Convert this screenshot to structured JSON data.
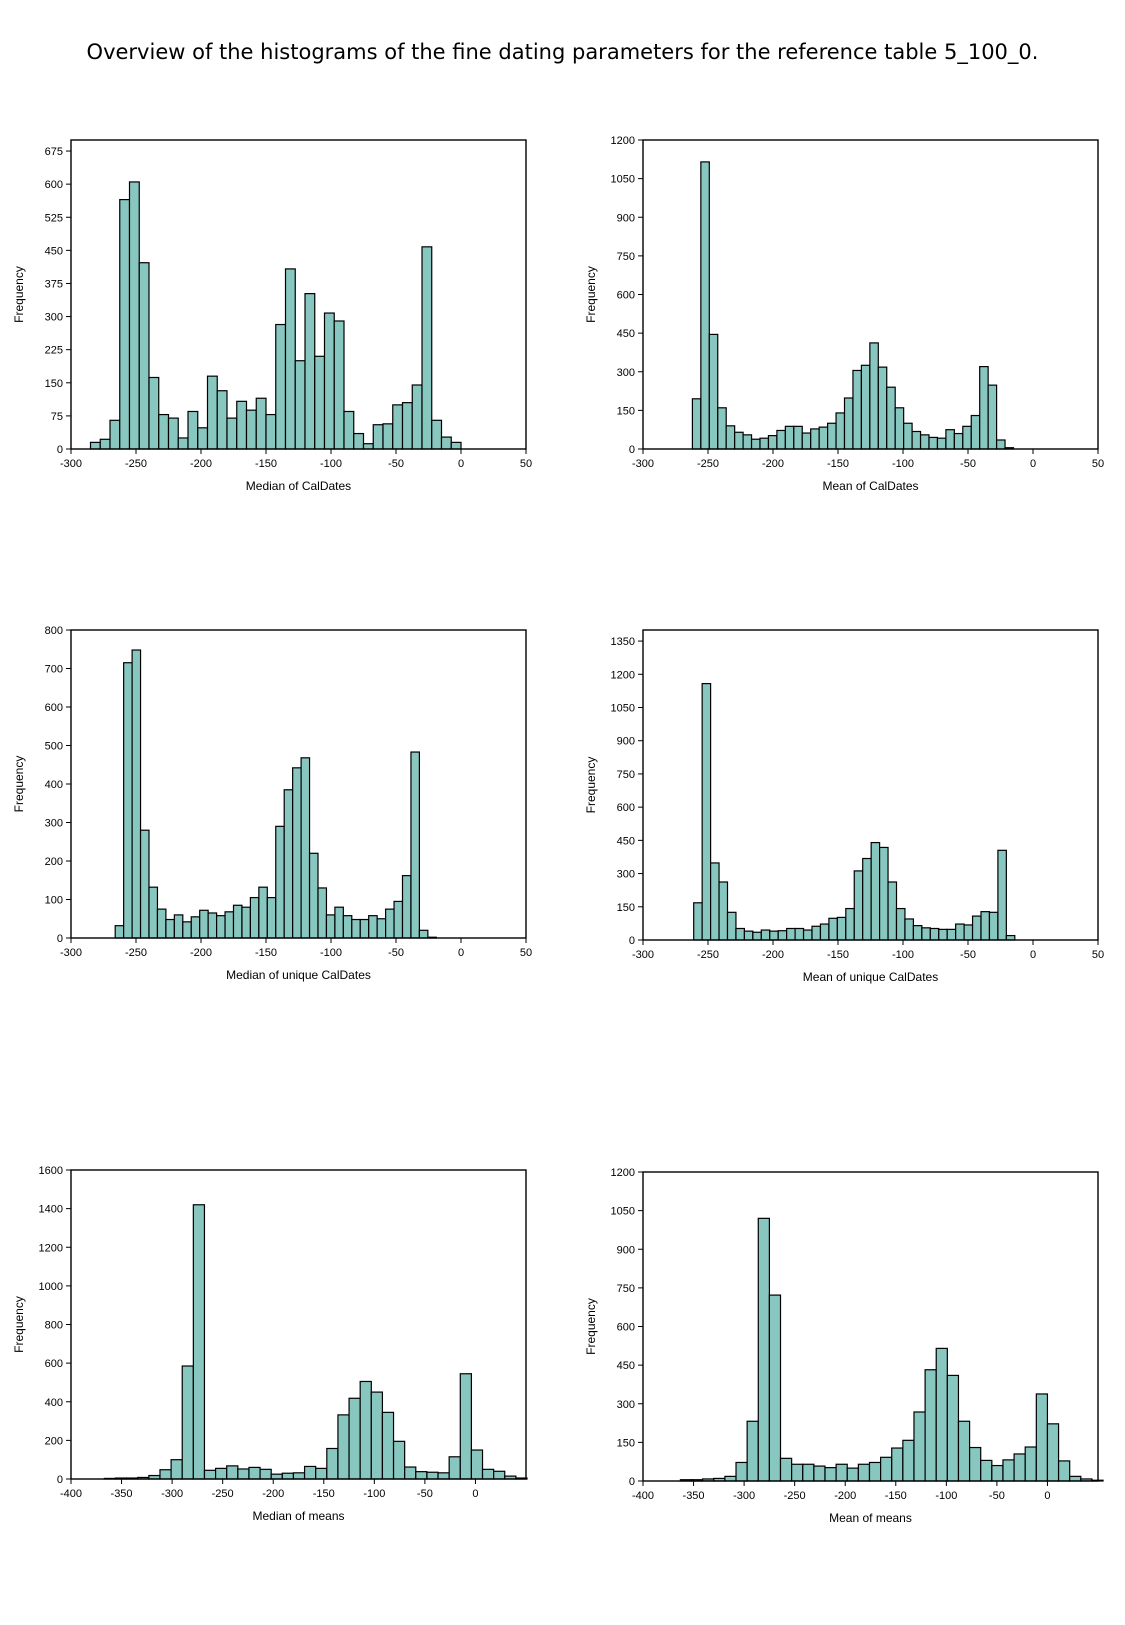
{
  "title": "Overview of the histograms of the fine dating parameters for the reference table 5_100_0.",
  "colors": {
    "bar_fill": "#88c6c0",
    "bar_stroke": "#000000"
  },
  "chart_data": [
    {
      "type": "bar",
      "xlabel": "Median of CalDates",
      "ylabel": "Frequency",
      "xlim": [
        -300,
        50
      ],
      "ylim": [
        0,
        700
      ],
      "xticks": [
        -300,
        -250,
        -200,
        -150,
        -100,
        -50,
        0,
        50
      ],
      "yticks": [
        0,
        75,
        150,
        225,
        300,
        375,
        450,
        525,
        600,
        675
      ],
      "bin_width": 7.5,
      "bin_starts": [
        -285,
        -277.5,
        -270,
        -262.5,
        -255,
        -247.5,
        -240,
        -232.5,
        -225,
        -217.5,
        -210,
        -202.5,
        -195,
        -187.5,
        -180,
        -172.5,
        -165,
        -157.5,
        -150,
        -142.5,
        -135,
        -127.5,
        -120,
        -112.5,
        -105,
        -97.5,
        -90,
        -82.5,
        -75,
        -67.5,
        -60,
        -52.5,
        -45,
        -37.5,
        -30,
        -22.5,
        -15,
        -7.5,
        0,
        7.5
      ],
      "values": [
        15,
        22,
        65,
        565,
        605,
        422,
        162,
        78,
        70,
        25,
        85,
        48,
        165,
        132,
        70,
        108,
        88,
        115,
        78,
        282,
        408,
        200,
        352,
        210,
        308,
        290,
        85,
        35,
        12,
        55,
        57,
        100,
        105,
        145,
        458,
        65,
        27,
        15,
        0,
        0
      ]
    },
    {
      "type": "bar",
      "xlabel": "Mean of CalDates",
      "ylabel": "Frequency",
      "xlim": [
        -300,
        50
      ],
      "ylim": [
        0,
        1200
      ],
      "xticks": [
        -300,
        -250,
        -200,
        -150,
        -100,
        -50,
        0,
        50
      ],
      "yticks": [
        0,
        150,
        300,
        450,
        600,
        750,
        900,
        1050,
        1200
      ],
      "bin_width": 6.5,
      "bin_starts": [
        -262,
        -255.5,
        -249,
        -242.5,
        -236,
        -229.5,
        -223,
        -216.5,
        -210,
        -203.5,
        -197,
        -190.5,
        -184,
        -177.5,
        -171,
        -164.5,
        -158,
        -151.5,
        -145,
        -138.5,
        -132,
        -125.5,
        -119,
        -112.5,
        -106,
        -99.5,
        -93,
        -86.5,
        -80,
        -73.5,
        -67,
        -60.5,
        -54,
        -47.5,
        -41,
        -34.5,
        -28,
        -21.5,
        -15,
        -8.5,
        -2,
        4.5
      ],
      "values": [
        195,
        1115,
        445,
        160,
        90,
        65,
        55,
        38,
        42,
        52,
        72,
        88,
        88,
        62,
        78,
        85,
        100,
        140,
        198,
        305,
        325,
        412,
        318,
        240,
        160,
        100,
        68,
        55,
        45,
        42,
        75,
        60,
        88,
        130,
        320,
        248,
        35,
        5,
        0,
        0,
        0,
        0
      ]
    },
    {
      "type": "bar",
      "xlabel": "Median of unique CalDates",
      "ylabel": "Frequency",
      "xlim": [
        -300,
        50
      ],
      "ylim": [
        0,
        800
      ],
      "xticks": [
        -300,
        -250,
        -200,
        -150,
        -100,
        -50,
        0,
        50
      ],
      "yticks": [
        0,
        100,
        200,
        300,
        400,
        500,
        600,
        700,
        800
      ],
      "bin_width": 6.5,
      "bin_starts": [
        -266,
        -259.5,
        -253,
        -246.5,
        -240,
        -233.5,
        -227,
        -220.5,
        -214,
        -207.5,
        -201,
        -194.5,
        -188,
        -181.5,
        -175,
        -168.5,
        -162,
        -155.5,
        -149,
        -142.5,
        -136,
        -129.5,
        -123,
        -116.5,
        -110,
        -103.5,
        -97,
        -90.5,
        -84,
        -77.5,
        -71,
        -64.5,
        -58,
        -51.5,
        -45,
        -38.5,
        -32,
        -25.5,
        -19,
        -12.5,
        -6,
        0.5
      ],
      "values": [
        32,
        715,
        748,
        280,
        132,
        75,
        48,
        60,
        42,
        55,
        72,
        65,
        58,
        68,
        85,
        80,
        105,
        132,
        105,
        290,
        385,
        442,
        468,
        220,
        130,
        60,
        80,
        58,
        48,
        48,
        58,
        50,
        75,
        95,
        162,
        483,
        20,
        2,
        0,
        0,
        0,
        0
      ]
    },
    {
      "type": "bar",
      "xlabel": "Mean of unique CalDates",
      "ylabel": "Frequency",
      "xlim": [
        -300,
        50
      ],
      "ylim": [
        0,
        1400
      ],
      "xticks": [
        -300,
        -250,
        -200,
        -150,
        -100,
        -50,
        0,
        50
      ],
      "yticks": [
        0,
        150,
        300,
        450,
        600,
        750,
        900,
        1050,
        1200,
        1350
      ],
      "bin_width": 6.5,
      "bin_starts": [
        -261,
        -254.5,
        -248,
        -241.5,
        -235,
        -228.5,
        -222,
        -215.5,
        -209,
        -202.5,
        -196,
        -189.5,
        -183,
        -176.5,
        -170,
        -163.5,
        -157,
        -150.5,
        -144,
        -137.5,
        -131,
        -124.5,
        -118,
        -111.5,
        -105,
        -98.5,
        -92,
        -85.5,
        -79,
        -72.5,
        -66,
        -59.5,
        -53,
        -46.5,
        -40,
        -33.5,
        -27,
        -20.5,
        -14,
        -7.5,
        -1,
        5.5
      ],
      "values": [
        168,
        1158,
        348,
        262,
        125,
        52,
        40,
        35,
        45,
        40,
        42,
        52,
        52,
        45,
        62,
        72,
        98,
        102,
        142,
        312,
        368,
        440,
        418,
        262,
        142,
        95,
        65,
        55,
        52,
        48,
        48,
        72,
        68,
        108,
        128,
        125,
        405,
        20,
        0,
        0,
        0,
        0
      ]
    },
    {
      "type": "bar",
      "xlabel": "Median of means",
      "ylabel": "Frequency",
      "xlim": [
        -400,
        50
      ],
      "ylim": [
        0,
        1600
      ],
      "xticks": [
        -400,
        -350,
        -300,
        -250,
        -200,
        -150,
        -100,
        -50,
        0
      ],
      "yticks": [
        0,
        200,
        400,
        600,
        800,
        1000,
        1200,
        1400,
        1600
      ],
      "bin_width": 11,
      "bin_starts": [
        -367,
        -356,
        -345,
        -334,
        -323,
        -312,
        -301,
        -290,
        -279,
        -268,
        -257,
        -246,
        -235,
        -224,
        -213,
        -202,
        -191,
        -180,
        -169,
        -158,
        -147,
        -136,
        -125,
        -114,
        -103,
        -92,
        -81,
        -70,
        -59,
        -48,
        -37,
        -26,
        -15,
        -4,
        7,
        18,
        29,
        40
      ],
      "values": [
        3,
        5,
        5,
        8,
        18,
        48,
        100,
        585,
        1420,
        45,
        55,
        68,
        52,
        60,
        50,
        25,
        30,
        32,
        65,
        55,
        158,
        332,
        418,
        505,
        450,
        345,
        195,
        62,
        38,
        35,
        32,
        115,
        545,
        150,
        50,
        40,
        15,
        5
      ]
    },
    {
      "type": "bar",
      "xlabel": "Mean of means",
      "ylabel": "Frequency",
      "xlim": [
        -400,
        50
      ],
      "ylim": [
        0,
        1200
      ],
      "xticks": [
        -400,
        -350,
        -300,
        -250,
        -200,
        -150,
        -100,
        -50,
        0
      ],
      "yticks": [
        0,
        150,
        300,
        450,
        600,
        750,
        900,
        1050,
        1200
      ],
      "bin_width": 11,
      "bin_starts": [
        -363,
        -352,
        -341,
        -330,
        -319,
        -308,
        -297,
        -286,
        -275,
        -264,
        -253,
        -242,
        -231,
        -220,
        -209,
        -198,
        -187,
        -176,
        -165,
        -154,
        -143,
        -132,
        -121,
        -110,
        -99,
        -88,
        -77,
        -66,
        -55,
        -44,
        -33,
        -22,
        -11,
        0,
        11,
        22,
        33,
        44
      ],
      "values": [
        5,
        5,
        8,
        10,
        18,
        72,
        232,
        1020,
        722,
        88,
        65,
        65,
        58,
        52,
        65,
        50,
        65,
        72,
        92,
        128,
        158,
        268,
        432,
        515,
        410,
        232,
        130,
        80,
        60,
        82,
        105,
        132,
        338,
        222,
        78,
        18,
        8,
        3
      ]
    }
  ]
}
